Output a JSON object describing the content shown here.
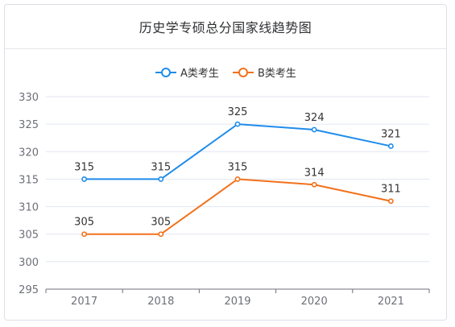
{
  "chart_data": {
    "type": "line",
    "title": "历史学专硕总分国家线趋势图",
    "categories": [
      "2017",
      "2018",
      "2019",
      "2020",
      "2021"
    ],
    "series": [
      {
        "name": "A类考生",
        "color": "#1f8ceb",
        "values": [
          315,
          315,
          325,
          324,
          321
        ]
      },
      {
        "name": "B类考生",
        "color": "#f2711c",
        "values": [
          305,
          305,
          315,
          314,
          311
        ]
      }
    ],
    "ylim": [
      295,
      330
    ],
    "yticks": [
      295,
      300,
      305,
      310,
      315,
      320,
      325,
      330
    ],
    "xlabel": "",
    "ylabel": "",
    "grid": true,
    "legend": "top-center",
    "data_labels": true
  },
  "colors": {
    "grid": "#e0e6f1",
    "axis": "#6e7079",
    "label": "#333333"
  }
}
